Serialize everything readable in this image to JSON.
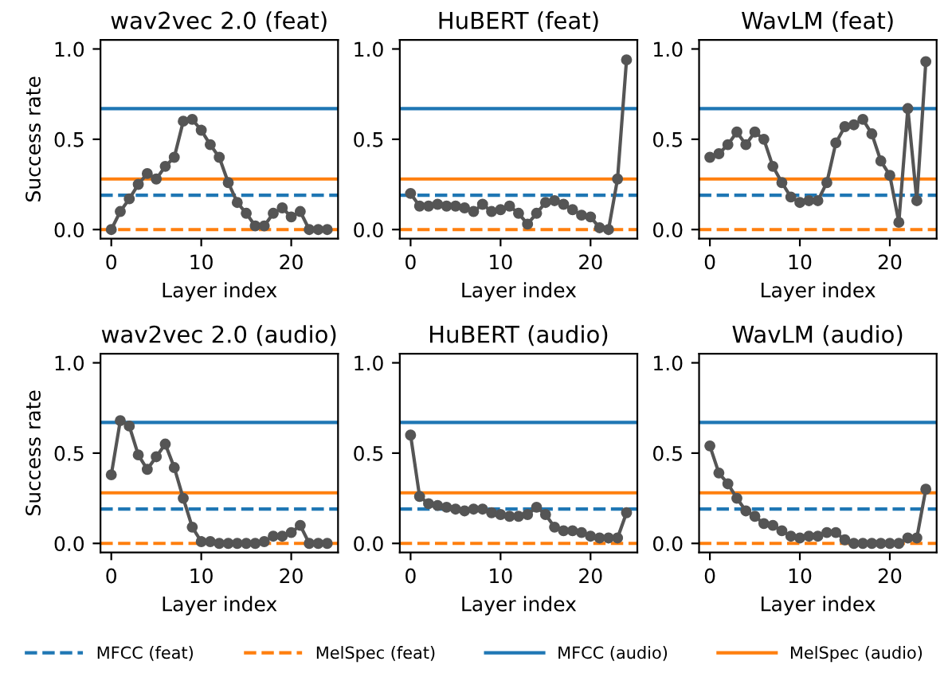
{
  "chart_data": [
    {
      "type": "line",
      "title": "wav2vec 2.0 (feat)",
      "xlabel": "Layer index",
      "ylabel": "Success rate",
      "x": [
        0,
        1,
        2,
        3,
        4,
        5,
        6,
        7,
        8,
        9,
        10,
        11,
        12,
        13,
        14,
        15,
        16,
        17,
        18,
        19,
        20,
        21,
        22,
        23,
        24
      ],
      "series": [
        {
          "color": "#555555",
          "values": [
            0.0,
            0.1,
            0.17,
            0.25,
            0.31,
            0.28,
            0.35,
            0.4,
            0.6,
            0.61,
            0.55,
            0.47,
            0.4,
            0.26,
            0.15,
            0.09,
            0.02,
            0.02,
            0.09,
            0.12,
            0.07,
            0.1,
            0.0,
            0.0,
            0.0
          ]
        }
      ],
      "marker": "circle",
      "xlim": [
        -1.2,
        25.2
      ],
      "ylim": [
        -0.05,
        1.05
      ],
      "xticks": [
        0,
        10,
        20
      ],
      "yticks": [
        {
          "value": 0,
          "label": "0.0"
        },
        {
          "value": 0.5,
          "label": "0.5"
        },
        {
          "value": 1,
          "label": "1.0"
        }
      ],
      "legend": "bottom",
      "ref_lines": [
        {
          "axis": "y",
          "value": 0.19,
          "label": "MFCC (feat)",
          "color": "#1f77b4",
          "line_style": "dashed"
        },
        {
          "axis": "y",
          "value": 0.0,
          "label": "MelSpec (feat)",
          "color": "#ff7f0e",
          "line_style": "dashed"
        },
        {
          "axis": "y",
          "value": 0.67,
          "label": "MFCC (audio)",
          "color": "#1f77b4",
          "line_style": "solid"
        },
        {
          "axis": "y",
          "value": 0.28,
          "label": "MelSpec (audio)",
          "color": "#ff7f0e",
          "line_style": "solid"
        }
      ]
    },
    {
      "type": "line",
      "title": "HuBERT (feat)",
      "xlabel": "Layer index",
      "x": [
        0,
        1,
        2,
        3,
        4,
        5,
        6,
        7,
        8,
        9,
        10,
        11,
        12,
        13,
        14,
        15,
        16,
        17,
        18,
        19,
        20,
        21,
        22,
        23,
        24
      ],
      "series": [
        {
          "color": "#555555",
          "values": [
            0.2,
            0.13,
            0.13,
            0.14,
            0.13,
            0.13,
            0.12,
            0.1,
            0.14,
            0.1,
            0.11,
            0.13,
            0.09,
            0.03,
            0.09,
            0.15,
            0.16,
            0.14,
            0.11,
            0.08,
            0.07,
            0.01,
            0.0,
            0.28,
            0.94
          ]
        }
      ],
      "marker": "circle",
      "xlim": [
        -1.2,
        25.2
      ],
      "ylim": [
        -0.05,
        1.05
      ],
      "xticks": [
        0,
        10,
        20
      ],
      "yticks": [
        {
          "value": 0,
          "label": "0.0"
        },
        {
          "value": 0.5,
          "label": "0.5"
        },
        {
          "value": 1,
          "label": "1.0"
        }
      ],
      "ref_lines": [
        {
          "axis": "y",
          "value": 0.19,
          "color": "#1f77b4",
          "line_style": "dashed"
        },
        {
          "axis": "y",
          "value": 0.0,
          "color": "#ff7f0e",
          "line_style": "dashed"
        },
        {
          "axis": "y",
          "value": 0.67,
          "color": "#1f77b4",
          "line_style": "solid"
        },
        {
          "axis": "y",
          "value": 0.28,
          "color": "#ff7f0e",
          "line_style": "solid"
        }
      ]
    },
    {
      "type": "line",
      "title": "WavLM (feat)",
      "xlabel": "Layer index",
      "x": [
        0,
        1,
        2,
        3,
        4,
        5,
        6,
        7,
        8,
        9,
        10,
        11,
        12,
        13,
        14,
        15,
        16,
        17,
        18,
        19,
        20,
        21,
        22,
        23,
        24
      ],
      "series": [
        {
          "color": "#555555",
          "values": [
            0.4,
            0.42,
            0.47,
            0.54,
            0.47,
            0.54,
            0.5,
            0.35,
            0.26,
            0.18,
            0.15,
            0.16,
            0.16,
            0.26,
            0.48,
            0.57,
            0.58,
            0.61,
            0.53,
            0.38,
            0.3,
            0.04,
            0.67,
            0.16,
            0.93
          ]
        }
      ],
      "marker": "circle",
      "xlim": [
        -1.2,
        25.2
      ],
      "ylim": [
        -0.05,
        1.05
      ],
      "xticks": [
        0,
        10,
        20
      ],
      "yticks": [
        {
          "value": 0,
          "label": "0.0"
        },
        {
          "value": 0.5,
          "label": "0.5"
        },
        {
          "value": 1,
          "label": "1.0"
        }
      ],
      "ref_lines": [
        {
          "axis": "y",
          "value": 0.19,
          "color": "#1f77b4",
          "line_style": "dashed"
        },
        {
          "axis": "y",
          "value": 0.0,
          "color": "#ff7f0e",
          "line_style": "dashed"
        },
        {
          "axis": "y",
          "value": 0.67,
          "color": "#1f77b4",
          "line_style": "solid"
        },
        {
          "axis": "y",
          "value": 0.28,
          "color": "#ff7f0e",
          "line_style": "solid"
        }
      ]
    },
    {
      "type": "line",
      "title": "wav2vec 2.0 (audio)",
      "xlabel": "Layer index",
      "ylabel": "Success rate",
      "x": [
        0,
        1,
        2,
        3,
        4,
        5,
        6,
        7,
        8,
        9,
        10,
        11,
        12,
        13,
        14,
        15,
        16,
        17,
        18,
        19,
        20,
        21,
        22,
        23,
        24
      ],
      "series": [
        {
          "color": "#555555",
          "values": [
            0.38,
            0.68,
            0.65,
            0.49,
            0.41,
            0.48,
            0.55,
            0.42,
            0.25,
            0.09,
            0.01,
            0.01,
            0.0,
            0.0,
            0.0,
            0.0,
            0.0,
            0.01,
            0.04,
            0.04,
            0.06,
            0.1,
            0.0,
            0.0,
            0.0
          ]
        }
      ],
      "marker": "circle",
      "xlim": [
        -1.2,
        25.2
      ],
      "ylim": [
        -0.05,
        1.05
      ],
      "xticks": [
        0,
        10,
        20
      ],
      "yticks": [
        {
          "value": 0,
          "label": "0.0"
        },
        {
          "value": 0.5,
          "label": "0.5"
        },
        {
          "value": 1,
          "label": "1.0"
        }
      ],
      "ref_lines": [
        {
          "axis": "y",
          "value": 0.19,
          "color": "#1f77b4",
          "line_style": "dashed"
        },
        {
          "axis": "y",
          "value": 0.0,
          "color": "#ff7f0e",
          "line_style": "dashed"
        },
        {
          "axis": "y",
          "value": 0.67,
          "color": "#1f77b4",
          "line_style": "solid"
        },
        {
          "axis": "y",
          "value": 0.28,
          "color": "#ff7f0e",
          "line_style": "solid"
        }
      ]
    },
    {
      "type": "line",
      "title": "HuBERT (audio)",
      "xlabel": "Layer index",
      "x": [
        0,
        1,
        2,
        3,
        4,
        5,
        6,
        7,
        8,
        9,
        10,
        11,
        12,
        13,
        14,
        15,
        16,
        17,
        18,
        19,
        20,
        21,
        22,
        23,
        24
      ],
      "series": [
        {
          "color": "#555555",
          "values": [
            0.6,
            0.26,
            0.22,
            0.21,
            0.2,
            0.19,
            0.18,
            0.19,
            0.19,
            0.17,
            0.16,
            0.15,
            0.15,
            0.16,
            0.2,
            0.16,
            0.09,
            0.07,
            0.07,
            0.06,
            0.04,
            0.03,
            0.03,
            0.03,
            0.17
          ]
        }
      ],
      "marker": "circle",
      "xlim": [
        -1.2,
        25.2
      ],
      "ylim": [
        -0.05,
        1.05
      ],
      "xticks": [
        0,
        10,
        20
      ],
      "yticks": [
        {
          "value": 0,
          "label": "0.0"
        },
        {
          "value": 0.5,
          "label": "0.5"
        },
        {
          "value": 1,
          "label": "1.0"
        }
      ],
      "ref_lines": [
        {
          "axis": "y",
          "value": 0.19,
          "color": "#1f77b4",
          "line_style": "dashed"
        },
        {
          "axis": "y",
          "value": 0.0,
          "color": "#ff7f0e",
          "line_style": "dashed"
        },
        {
          "axis": "y",
          "value": 0.67,
          "color": "#1f77b4",
          "line_style": "solid"
        },
        {
          "axis": "y",
          "value": 0.28,
          "color": "#ff7f0e",
          "line_style": "solid"
        }
      ]
    },
    {
      "type": "line",
      "title": "WavLM (audio)",
      "xlabel": "Layer index",
      "x": [
        0,
        1,
        2,
        3,
        4,
        5,
        6,
        7,
        8,
        9,
        10,
        11,
        12,
        13,
        14,
        15,
        16,
        17,
        18,
        19,
        20,
        21,
        22,
        23,
        24
      ],
      "series": [
        {
          "color": "#555555",
          "values": [
            0.54,
            0.39,
            0.33,
            0.25,
            0.18,
            0.15,
            0.11,
            0.1,
            0.07,
            0.04,
            0.03,
            0.04,
            0.04,
            0.06,
            0.06,
            0.02,
            0.0,
            0.0,
            0.0,
            0.0,
            0.0,
            0.0,
            0.03,
            0.03,
            0.3
          ]
        }
      ],
      "marker": "circle",
      "xlim": [
        -1.2,
        25.2
      ],
      "ylim": [
        -0.05,
        1.05
      ],
      "xticks": [
        0,
        10,
        20
      ],
      "yticks": [
        {
          "value": 0,
          "label": "0.0"
        },
        {
          "value": 0.5,
          "label": "0.5"
        },
        {
          "value": 1,
          "label": "1.0"
        }
      ],
      "ref_lines": [
        {
          "axis": "y",
          "value": 0.19,
          "color": "#1f77b4",
          "line_style": "dashed"
        },
        {
          "axis": "y",
          "value": 0.0,
          "color": "#ff7f0e",
          "line_style": "dashed"
        },
        {
          "axis": "y",
          "value": 0.67,
          "color": "#1f77b4",
          "line_style": "solid"
        },
        {
          "axis": "y",
          "value": 0.28,
          "color": "#ff7f0e",
          "line_style": "solid"
        }
      ]
    }
  ]
}
